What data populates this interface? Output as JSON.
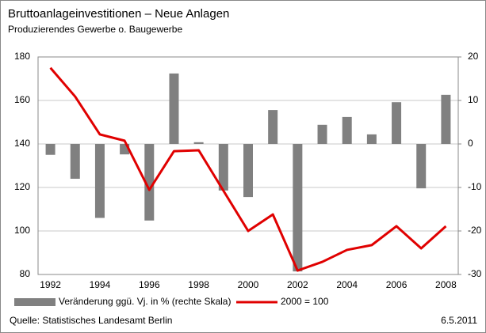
{
  "chart_data": {
    "type": "bar_line",
    "title": "Bruttoanlageinvestitionen – Neue Anlagen",
    "subtitle": "Produzierendes Gewerbe o. Baugewerbe",
    "source": "Quelle: Statistisches Landesamt Berlin",
    "date": "6.5.2011",
    "categories": [
      "1992",
      null,
      "1994",
      null,
      "1996",
      null,
      "1998",
      null,
      "2000",
      null,
      "2002",
      null,
      "2004",
      null,
      "2006",
      null,
      "2008"
    ],
    "series": [
      {
        "name": "Veränderung ggü. Vj. in % (rechte Skala)",
        "type": "bar",
        "axis": "y2",
        "color": "#808080",
        "values": [
          -2.5,
          -8,
          -17,
          -2.4,
          -17.6,
          16.2,
          0.4,
          -10.7,
          -12.2,
          7.8,
          -29.3,
          4.4,
          6.2,
          2.2,
          9.6,
          -10.2,
          11.3
        ]
      },
      {
        "name": "2000 = 100",
        "type": "line",
        "color": "#e00000",
        "values": [
          175,
          161.8,
          144.4,
          141.5,
          118.9,
          136.7,
          137.1,
          118.5,
          100,
          107.6,
          81.8,
          85.8,
          91.3,
          93.5,
          102.2,
          92,
          102.2
        ]
      }
    ],
    "ylim": [
      80,
      180
    ],
    "yticks": [
      80,
      100,
      120,
      140,
      160,
      180
    ],
    "y2lim": [
      -30,
      20
    ],
    "y2ticks": [
      -30,
      -20,
      -10,
      0,
      10,
      20
    ],
    "grid": true
  }
}
